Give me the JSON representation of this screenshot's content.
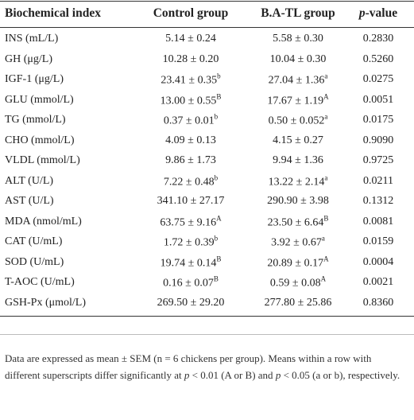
{
  "table": {
    "header": [
      "Biochemical index",
      "Control group",
      "B.A-TL group",
      [
        {
          "text": "p",
          "italic": true
        },
        {
          "text": "-value"
        }
      ]
    ],
    "rows": [
      [
        "INS (mL/L)",
        {
          "text": "5.14 ± 0.24"
        },
        {
          "text": "5.58 ± 0.30"
        },
        "0.2830"
      ],
      [
        "GH (μg/L)",
        {
          "text": "10.28 ± 0.20"
        },
        {
          "text": "10.04 ± 0.30"
        },
        "0.5260"
      ],
      [
        "IGF-1 (μg/L)",
        {
          "text": "23.41 ± 0.35",
          "sup": "b"
        },
        {
          "text": "27.04 ± 1.36",
          "sup": "a"
        },
        "0.0275"
      ],
      [
        "GLU (mmol/L)",
        {
          "text": "13.00 ± 0.55",
          "sup": "B"
        },
        {
          "text": "17.67 ± 1.19",
          "sup": "A"
        },
        "0.0051"
      ],
      [
        "TG (mmol/L)",
        {
          "text": "0.37 ± 0.01",
          "sup": "b"
        },
        {
          "text": "0.50 ± 0.052",
          "sup": "a"
        },
        "0.0175"
      ],
      [
        "CHO (mmol/L)",
        {
          "text": "4.09 ± 0.13"
        },
        {
          "text": "4.15 ± 0.27"
        },
        "0.9090"
      ],
      [
        "VLDL (mmol/L)",
        {
          "text": "9.86 ± 1.73"
        },
        {
          "text": "9.94 ± 1.36"
        },
        "0.9725"
      ],
      [
        "ALT (U/L)",
        {
          "text": "7.22 ± 0.48",
          "sup": "b"
        },
        {
          "text": "13.22 ± 2.14",
          "sup": "a"
        },
        "0.0211"
      ],
      [
        "AST (U/L)",
        {
          "text": "341.10 ± 27.17"
        },
        {
          "text": "290.90 ± 3.98"
        },
        "0.1312"
      ],
      [
        "MDA (nmol/mL)",
        {
          "text": "63.75 ± 9.16",
          "sup": "A"
        },
        {
          "text": "23.50 ± 6.64",
          "sup": "B"
        },
        "0.0081"
      ],
      [
        "CAT (U/mL)",
        {
          "text": "1.72 ± 0.39",
          "sup": "b"
        },
        {
          "text": "3.92 ± 0.67",
          "sup": "a"
        },
        "0.0159"
      ],
      [
        "SOD (U/mL)",
        {
          "text": "19.74 ± 0.14",
          "sup": "B"
        },
        {
          "text": "20.89 ± 0.17",
          "sup": "A"
        },
        "0.0004"
      ],
      [
        "T-AOC (U/mL)",
        {
          "text": "0.16 ± 0.07",
          "sup": "B"
        },
        {
          "text": "0.59 ± 0.08",
          "sup": "A"
        },
        "0.0021"
      ],
      [
        "GSH-Px (μmol/L)",
        {
          "text": "269.50 ± 29.20"
        },
        {
          "text": "277.80 ± 25.86"
        },
        "0.8360"
      ]
    ],
    "footnote": [
      {
        "text": "Data are expressed as mean ± SEM (n = 6 chickens per group). Means within a row with different superscripts differ significantly at "
      },
      {
        "text": "p",
        "italic": true
      },
      {
        "text": " < 0.01 (A or B) and "
      },
      {
        "text": "p",
        "italic": true
      },
      {
        "text": " < 0.05 (a or b), respectively."
      }
    ]
  }
}
